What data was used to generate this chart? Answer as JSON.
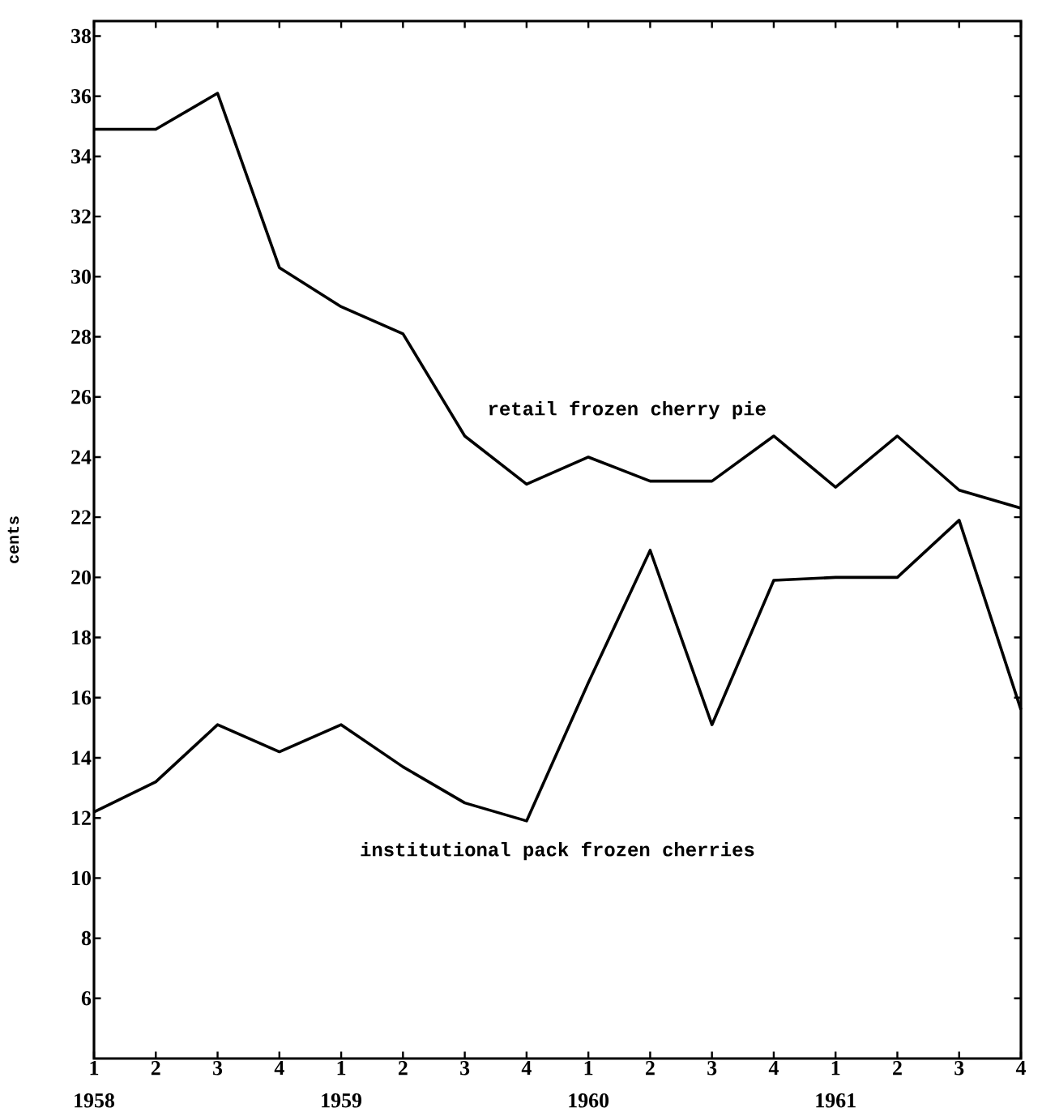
{
  "chart_data": {
    "type": "line",
    "ylabel": "cents",
    "categories": [
      "1",
      "2",
      "3",
      "4",
      "1",
      "2",
      "3",
      "4",
      "1",
      "2",
      "3",
      "4",
      "1",
      "2",
      "3",
      "4"
    ],
    "series": [
      {
        "name": "retail frozen cherry pie",
        "color": "#000000",
        "values": [
          34.9,
          34.9,
          36.1,
          30.3,
          29.0,
          28.1,
          24.7,
          23.1,
          24.0,
          23.2,
          23.2,
          24.7,
          23.0,
          24.7,
          22.9,
          22.3
        ]
      },
      {
        "name": "institutional pack frozen cherries",
        "color": "#000000",
        "values": [
          12.2,
          13.2,
          15.1,
          14.2,
          15.1,
          13.7,
          12.5,
          11.9,
          16.5,
          20.9,
          15.1,
          19.9,
          20.0,
          20.0,
          21.9,
          15.6
        ]
      }
    ],
    "ylim": [
      4,
      38.5
    ],
    "yticks": [
      6,
      8,
      10,
      12,
      14,
      16,
      18,
      20,
      22,
      24,
      26,
      28,
      30,
      32,
      34,
      36,
      38
    ],
    "annotations": [
      "1958",
      "1959",
      "1960",
      "1961"
    ],
    "grid": false,
    "legend": false,
    "marker": "none",
    "line_style": "solid"
  }
}
